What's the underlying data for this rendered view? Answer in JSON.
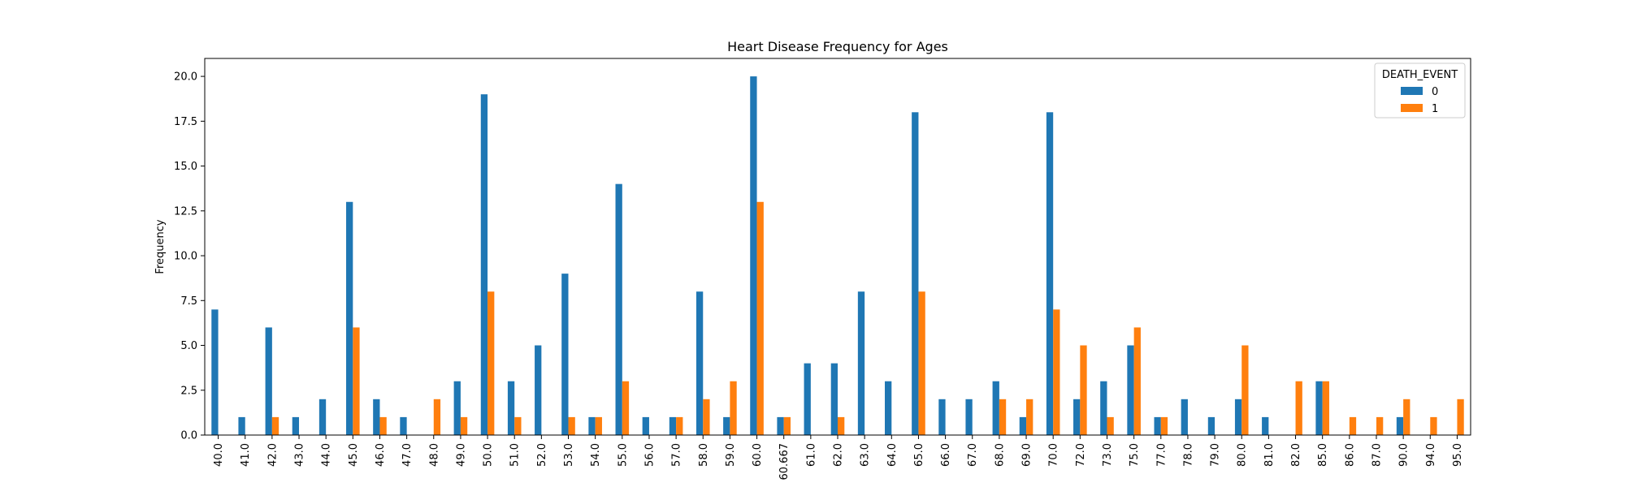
{
  "chart_data": {
    "type": "bar",
    "title": "Heart Disease Frequency for Ages",
    "xlabel": "",
    "ylabel": "Frequency",
    "ylim": [
      0,
      21
    ],
    "yticks": [
      "0.0",
      "2.5",
      "5.0",
      "7.5",
      "10.0",
      "12.5",
      "15.0",
      "17.5",
      "20.0"
    ],
    "categories": [
      "40.0",
      "41.0",
      "42.0",
      "43.0",
      "44.0",
      "45.0",
      "46.0",
      "47.0",
      "48.0",
      "49.0",
      "50.0",
      "51.0",
      "52.0",
      "53.0",
      "54.0",
      "55.0",
      "56.0",
      "57.0",
      "58.0",
      "59.0",
      "60.0",
      "60.667",
      "61.0",
      "62.0",
      "63.0",
      "64.0",
      "65.0",
      "66.0",
      "67.0",
      "68.0",
      "69.0",
      "70.0",
      "72.0",
      "73.0",
      "75.0",
      "77.0",
      "78.0",
      "79.0",
      "80.0",
      "81.0",
      "82.0",
      "85.0",
      "86.0",
      "87.0",
      "90.0",
      "94.0",
      "95.0"
    ],
    "legend_title": "DEATH_EVENT",
    "legend_position": "top-right",
    "grid": false,
    "series": [
      {
        "name": "0",
        "color": "#1f77b4",
        "values": [
          7,
          1,
          6,
          1,
          2,
          13,
          2,
          1,
          0,
          3,
          19,
          3,
          5,
          9,
          1,
          14,
          1,
          1,
          8,
          1,
          20,
          1,
          4,
          4,
          8,
          3,
          18,
          2,
          2,
          3,
          1,
          18,
          2,
          3,
          5,
          1,
          2,
          1,
          2,
          1,
          0,
          3,
          0,
          0,
          1,
          0,
          0
        ]
      },
      {
        "name": "1",
        "color": "#ff7f0e",
        "values": [
          0,
          0,
          1,
          0,
          0,
          6,
          1,
          0,
          2,
          1,
          8,
          1,
          0,
          1,
          1,
          3,
          0,
          1,
          2,
          3,
          13,
          1,
          0,
          1,
          0,
          0,
          8,
          0,
          0,
          2,
          2,
          7,
          5,
          1,
          6,
          1,
          0,
          0,
          5,
          0,
          3,
          3,
          1,
          1,
          2,
          1,
          2
        ]
      }
    ]
  }
}
